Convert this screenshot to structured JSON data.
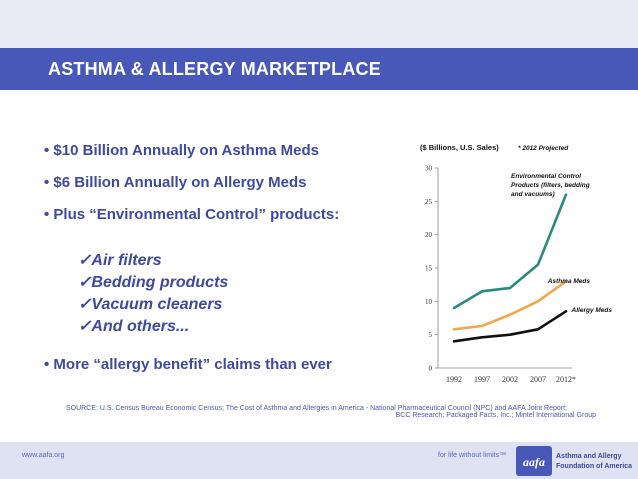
{
  "slide": {
    "title": "ASTHMA & ALLERGY MARKETPLACE",
    "bullets": [
      "• $10 Billion Annually on Asthma Meds",
      "• $6 Billion Annually on Allergy Meds",
      "• Plus “Environmental Control” products:"
    ],
    "checklist": [
      "✓Air filters",
      "✓Bedding products",
      "✓Vacuum cleaners",
      "✓And others..."
    ],
    "last_bullet": "• More “allergy benefit” claims than ever",
    "source_line1": "SOURCE: U.S. Census Bureau Economic Census; The Cost of Asthma and Allergies in  America - National Pharmaceutical Council (NPC) and AAFA Joint Report;",
    "source_line2": "BCC Research; Packaged  Facts, Inc.; Mintel International Group"
  },
  "footer": {
    "url": "www.aafa.org",
    "tagline": "for life without limits™",
    "logo_line1": "Asthma and Allergy",
    "logo_line2": "Foundation of America",
    "logo_mark": "aafa"
  },
  "chart_data": {
    "type": "line",
    "title": "($ Billions, U.S. Sales)",
    "subtitle": "* 2012 Projected",
    "xlabel": "",
    "ylabel": "",
    "x": [
      "1992",
      "1997",
      "2002",
      "2007",
      "2012*"
    ],
    "ylim": [
      0,
      30
    ],
    "yticks": [
      0,
      5,
      10,
      15,
      20,
      25,
      30
    ],
    "grid": false,
    "legend": "inline labels at line ends",
    "series": [
      {
        "name": "Environmental Control Products (filters, bedding and vacuums)",
        "label_lines": [
          "Environmental Control",
          "Products (filters, bedding",
          "and vacuums)"
        ],
        "color": "#2a8a80",
        "values": [
          9,
          11.5,
          12,
          15.5,
          26
        ]
      },
      {
        "name": "Asthma Meds",
        "label_lines": [
          "Asthma Meds"
        ],
        "color": "#f0a84a",
        "values": [
          5.8,
          6.3,
          8,
          10,
          13
        ]
      },
      {
        "name": "Allergy Meds",
        "label_lines": [
          "Allergy Meds"
        ],
        "color": "#111111",
        "values": [
          4,
          4.6,
          5,
          5.8,
          8.5
        ]
      }
    ]
  }
}
